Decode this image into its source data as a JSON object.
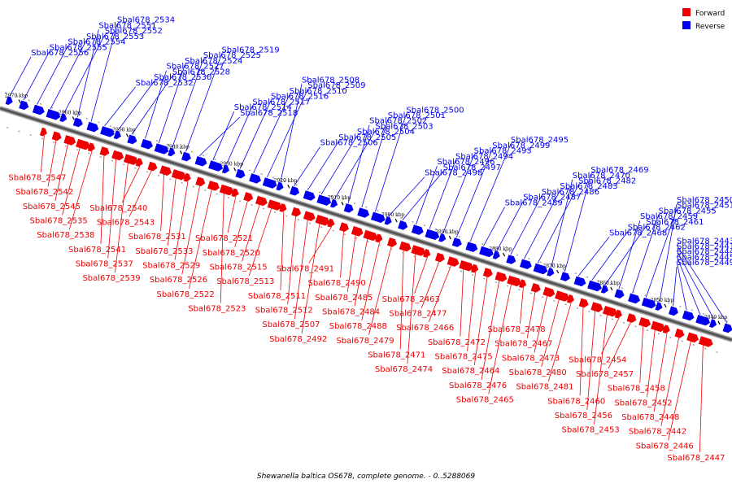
{
  "caption": "Shewanella baltica OS678, complete genome. - 0..5288069",
  "legend": [
    {
      "label": "Forward",
      "color": "#ee0000"
    },
    {
      "label": "Reverse",
      "color": "#0000ee"
    }
  ],
  "colors": {
    "forward": "#ee0000",
    "reverse": "#0000ee",
    "backbone": "#555555"
  },
  "ticks": [
    "2970 kbp",
    "2960 kbp",
    "2950 kbp",
    "2940 kbp",
    "2930 kbp",
    "2920 kbp",
    "2910 kbp",
    "2900 kbp",
    "2890 kbp",
    "2880 kbp",
    "2870 kbp",
    "2860 kbp",
    "2850 kbp",
    "2840 kbp"
  ],
  "reverse_genes": [
    "Sbal678_2556",
    "Sbal678_2555",
    "Sbal678_2554",
    "Sbal678_2553",
    "Sbal678_2552",
    "Sbal678_2551",
    "Sbal678_2534",
    "Sbal678_2532",
    "Sbal678_2530",
    "Sbal678_2528",
    "Sbal678_2527",
    "Sbal678_2524",
    "Sbal678_2525",
    "Sbal678_2519",
    "Sbal678_2518",
    "Sbal678_2514",
    "Sbal678_2517",
    "Sbal678_2516",
    "Sbal678_2510",
    "Sbal678_2509",
    "Sbal678_2508",
    "Sbal678_2506",
    "Sbal678_2505",
    "Sbal678_2504",
    "Sbal678_2503",
    "Sbal678_2502",
    "Sbal678_2501",
    "Sbal678_2500",
    "Sbal678_2498",
    "Sbal678_2497",
    "Sbal678_2496",
    "Sbal678_2494",
    "Sbal678_2493",
    "Sbal678_2499",
    "Sbal678_2495",
    "Sbal678_2489",
    "Sbal678_2487",
    "Sbal678_2486",
    "Sbal678_2483",
    "Sbal678_2482",
    "Sbal678_2470",
    "Sbal678_2469",
    "Sbal678_2468",
    "Sbal678_2462",
    "Sbal678_2461",
    "Sbal678_2459",
    "Sbal678_2455",
    "Sbal678_2451",
    "Sbal678_2450",
    "Sbal678_2449",
    "Sbal678_2445",
    "Sbal678_2444",
    "Sbal678_2441",
    "Sbal678_2443"
  ],
  "forward_genes": [
    "Sbal678_2547",
    "Sbal678_2542",
    "Sbal678_2545",
    "Sbal678_2535",
    "Sbal678_2538",
    "Sbal678_2541",
    "Sbal678_2537",
    "Sbal678_2539",
    "Sbal678_2540",
    "Sbal678_2543",
    "Sbal678_2531",
    "Sbal678_2533",
    "Sbal678_2529",
    "Sbal678_2526",
    "Sbal678_2522",
    "Sbal678_2523",
    "Sbal678_2521",
    "Sbal678_2520",
    "Sbal678_2515",
    "Sbal678_2513",
    "Sbal678_2511",
    "Sbal678_2512",
    "Sbal678_2507",
    "Sbal678_2492",
    "Sbal678_2491",
    "Sbal678_2490",
    "Sbal678_2485",
    "Sbal678_2484",
    "Sbal678_2488",
    "Sbal678_2479",
    "Sbal678_2471",
    "Sbal678_2474",
    "Sbal678_2463",
    "Sbal678_2477",
    "Sbal678_2466",
    "Sbal678_2472",
    "Sbal678_2475",
    "Sbal678_2464",
    "Sbal678_2476",
    "Sbal678_2465",
    "Sbal678_2478",
    "Sbal678_2467",
    "Sbal678_2473",
    "Sbal678_2480",
    "Sbal678_2481",
    "Sbal678_2460",
    "Sbal678_2456",
    "Sbal678_2453",
    "Sbal678_2454",
    "Sbal678_2457",
    "Sbal678_2458",
    "Sbal678_2452",
    "Sbal678_2448",
    "Sbal678_2442",
    "Sbal678_2446",
    "Sbal678_2447"
  ]
}
